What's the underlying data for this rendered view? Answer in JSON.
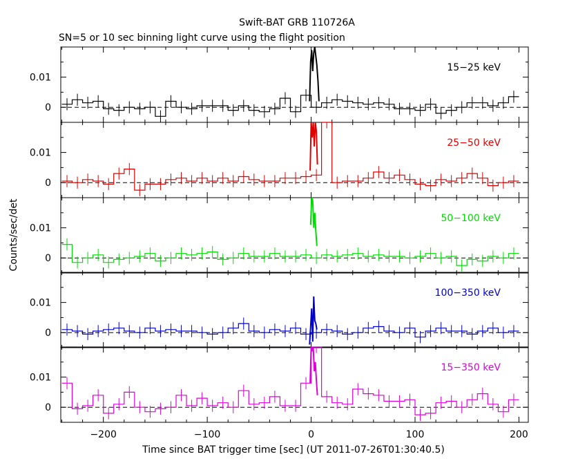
{
  "chart_data": {
    "type": "line",
    "title": "Swift-BAT GRB 110726A",
    "subtitle": "SN=5 or 10 sec binning light curve using the flight position",
    "xlabel": "Time since BAT trigger time [sec] (UT 2011-07-26T01:30:40.5)",
    "ylabel": "Counts/sec/det",
    "xlim": [
      -241,
      209
    ],
    "x_ticks": [
      -200,
      -100,
      0,
      100,
      200
    ],
    "x_tick_labels": [
      "−200",
      "−100",
      "0",
      "100",
      "200"
    ],
    "y_ticks": [
      0,
      0.01
    ],
    "y_tick_labels": [
      "0",
      "0.01"
    ],
    "grid": false,
    "zero_line": "dashed",
    "bin_edges": [
      -240,
      -230,
      -220,
      -210,
      -200,
      -190,
      -180,
      -170,
      -160,
      -150,
      -140,
      -130,
      -120,
      -110,
      -100,
      -90,
      -80,
      -70,
      -60,
      -50,
      -40,
      -30,
      -20,
      -10,
      0,
      10,
      20,
      30,
      40,
      50,
      60,
      70,
      80,
      90,
      100,
      110,
      120,
      130,
      140,
      150,
      160,
      170,
      180,
      190,
      200
    ],
    "panels": [
      {
        "name": "15−25 keV",
        "color": "#000000",
        "ylim": [
          -0.005,
          0.02
        ],
        "values": [
          0.001,
          0.0025,
          0.0015,
          0.002,
          -0.0005,
          -0.001,
          0.0,
          -0.0005,
          0.0,
          -0.003,
          0.002,
          0.0,
          -0.0005,
          0.0005,
          0.0005,
          0.0005,
          -0.001,
          0.0005,
          -0.001,
          -0.0015,
          -0.0005,
          0.003,
          -0.0015,
          0.004,
          0.0,
          0.0015,
          0.0025,
          0.002,
          0.0015,
          0.001,
          0.0015,
          0.001,
          -0.0005,
          -0.0005,
          -0.001,
          0.001,
          -0.002,
          -0.001,
          0.0,
          0.0015,
          0.0015,
          0.0005,
          0.0015,
          0.0035
        ],
        "burst": {
          "x": [
            -1.5,
            -0.5,
            0.5,
            1.5,
            2.5,
            3.5,
            4.5,
            5.5,
            6.5,
            7.5
          ],
          "values": [
            0.002,
            0.015,
            0.019,
            0.012,
            0.018,
            0.02,
            0.017,
            0.014,
            0.009,
            0.002
          ]
        }
      },
      {
        "name": "25−50 keV",
        "color": "#dd0000",
        "ylim": [
          -0.005,
          0.02
        ],
        "values": [
          0.0005,
          0.0,
          0.001,
          0.0005,
          -0.0005,
          0.003,
          0.0045,
          -0.0025,
          -0.0005,
          -0.0005,
          0.001,
          0.0015,
          0.0005,
          0.0015,
          0.0005,
          0.0015,
          0.0005,
          0.002,
          0.001,
          0.0005,
          0.0005,
          0.0015,
          0.0015,
          0.002,
          0.0025,
          0.02,
          0.0,
          0.0005,
          0.0005,
          0.0015,
          0.0035,
          0.0015,
          0.0025,
          0.001,
          -0.0005,
          -0.001,
          0.001,
          0.0005,
          0.0015,
          0.003,
          0.0015,
          -0.001,
          0.0,
          0.0005
        ],
        "burst": {
          "x": [
            -1,
            0,
            1,
            2,
            3,
            4,
            5,
            6
          ],
          "values": [
            0.004,
            0.02,
            0.015,
            0.02,
            0.012,
            0.02,
            0.017,
            0.006
          ]
        }
      },
      {
        "name": "50−100 keV",
        "color": "#00dd00",
        "ylim": [
          -0.005,
          0.02
        ],
        "values": [
          0.0045,
          -0.0015,
          0.0,
          0.001,
          -0.0015,
          -0.0005,
          0.0,
          0.0005,
          0.0015,
          -0.001,
          0.0,
          0.0015,
          0.001,
          0.0015,
          0.002,
          -0.0005,
          0.0,
          0.0015,
          0.0005,
          0.0005,
          0.0015,
          0.0005,
          0.0005,
          0.001,
          0.0,
          0.001,
          0.0005,
          0.001,
          0.0015,
          0.0005,
          0.001,
          0.0005,
          0.0005,
          0.0,
          0.0005,
          0.0015,
          0.0,
          0.0005,
          -0.0025,
          -0.0005,
          -0.001,
          0.0005,
          0.0,
          0.0015
        ],
        "burst": {
          "x": [
            -0.5,
            0.5,
            1.5,
            2.5,
            3.5,
            4.5,
            5.5
          ],
          "values": [
            0.011,
            0.02,
            0.019,
            0.01,
            0.015,
            0.009,
            0.004
          ]
        }
      },
      {
        "name": "100−350 keV",
        "color": "#0000cc",
        "ylim": [
          -0.005,
          0.02
        ],
        "values": [
          0.001,
          0.0005,
          -0.0005,
          0.0005,
          0.001,
          0.0015,
          0.0005,
          0.0,
          0.0015,
          0.0005,
          0.001,
          0.0005,
          0.0005,
          0.0,
          -0.0005,
          0.0,
          0.0015,
          0.003,
          0.0005,
          0.0,
          0.001,
          0.0005,
          0.0015,
          -0.0005,
          0.0,
          0.001,
          0.0005,
          -0.0005,
          0.0,
          0.0015,
          0.002,
          0.0005,
          0.0,
          0.0015,
          -0.0015,
          0.0005,
          0.0015,
          0.0005,
          0.0005,
          -0.0005,
          0.0005,
          0.0015,
          0.0,
          0.0005
        ],
        "burst": {
          "x": [
            -1.5,
            -0.5,
            0.5,
            1.5,
            2.5,
            3.5,
            4.5,
            5.5
          ],
          "values": [
            -0.004,
            0.002,
            0.008,
            -0.003,
            0.012,
            0.004,
            0.003,
            0.001
          ]
        }
      },
      {
        "name": "15−350 keV",
        "color": "#dd00dd",
        "ylim": [
          -0.005,
          0.02
        ],
        "values": [
          0.008,
          -0.0005,
          0.0005,
          0.004,
          -0.002,
          0.001,
          0.005,
          0.0,
          -0.0015,
          -0.0005,
          0.0,
          0.004,
          0.0005,
          0.003,
          0.0005,
          0.0015,
          0.0,
          0.0055,
          0.001,
          0.0015,
          0.0035,
          0.0005,
          0.0005,
          0.008,
          0.02,
          0.0035,
          0.0015,
          0.001,
          0.006,
          0.0045,
          0.004,
          0.002,
          0.002,
          0.0025,
          -0.0025,
          -0.002,
          0.0015,
          0.002,
          0.0,
          0.0025,
          0.0045,
          0.001,
          -0.0015,
          0.0025
        ],
        "burst": {
          "x": [
            -1,
            0,
            1,
            2,
            3,
            4,
            5,
            6
          ],
          "values": [
            0.008,
            0.02,
            0.019,
            0.02,
            0.012,
            0.015,
            0.009,
            0.004
          ]
        }
      }
    ]
  }
}
